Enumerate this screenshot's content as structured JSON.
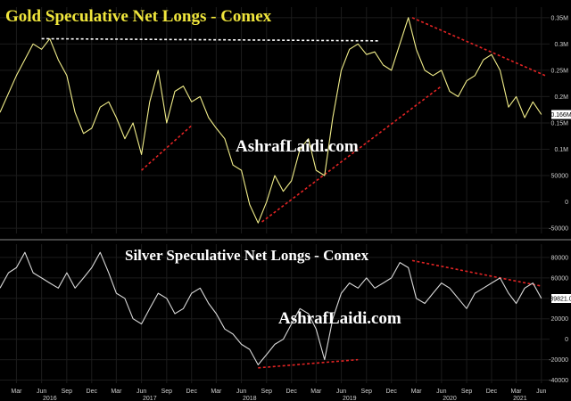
{
  "chart_data": [
    {
      "type": "line",
      "title": "Gold Speculative Net Longs - Comex",
      "watermark": "AshrafLaidi.com",
      "line_color": "#f2ee8a",
      "ylim": [
        -60000,
        370000
      ],
      "yticks": [
        {
          "value": 350000,
          "label": "0.35M"
        },
        {
          "value": 300000,
          "label": "0.3M"
        },
        {
          "value": 250000,
          "label": "0.25M"
        },
        {
          "value": 200000,
          "label": "0.2M"
        },
        {
          "value": 150000,
          "label": "0.15M"
        },
        {
          "value": 100000,
          "label": "0.1M"
        },
        {
          "value": 50000,
          "label": "50000"
        },
        {
          "value": 0,
          "label": "0"
        },
        {
          "value": -50000,
          "label": "-50000"
        }
      ],
      "last_value_label": "0.166M",
      "last_value": 166000,
      "series": [
        {
          "x": [
            "2016-01-01",
            "2016-03-01",
            "2016-05-01",
            "2016-06-01",
            "2016-07-01",
            "2016-08-01",
            "2016-09-01",
            "2016-10-01",
            "2016-11-01",
            "2016-12-01",
            "2017-01-01",
            "2017-02-01",
            "2017-03-01",
            "2017-04-01",
            "2017-05-01",
            "2017-06-01",
            "2017-07-01",
            "2017-08-01",
            "2017-09-01",
            "2017-10-01",
            "2017-11-01",
            "2017-12-01",
            "2018-01-01",
            "2018-02-01",
            "2018-03-01",
            "2018-04-01",
            "2018-05-01",
            "2018-06-01",
            "2018-07-01",
            "2018-08-01",
            "2018-09-01",
            "2018-10-01",
            "2018-11-01",
            "2018-12-01",
            "2019-01-01",
            "2019-02-01",
            "2019-03-01",
            "2019-04-01",
            "2019-05-01",
            "2019-06-01",
            "2019-07-01",
            "2019-08-01",
            "2019-09-01",
            "2019-10-01",
            "2019-11-01",
            "2019-12-01",
            "2020-01-01",
            "2020-02-01",
            "2020-03-01",
            "2020-04-01",
            "2020-05-01",
            "2020-06-01",
            "2020-07-01",
            "2020-08-01",
            "2020-09-01",
            "2020-10-01",
            "2020-11-01",
            "2020-12-01",
            "2021-01-01",
            "2021-02-01",
            "2021-03-01",
            "2021-04-01",
            "2021-05-01",
            "2021-06-01"
          ],
          "y": [
            170000,
            240000,
            300000,
            290000,
            310000,
            270000,
            240000,
            170000,
            130000,
            140000,
            180000,
            190000,
            160000,
            120000,
            150000,
            90000,
            190000,
            250000,
            150000,
            210000,
            220000,
            190000,
            200000,
            160000,
            140000,
            120000,
            70000,
            60000,
            -5000,
            -40000,
            0,
            50000,
            20000,
            40000,
            100000,
            120000,
            60000,
            50000,
            160000,
            250000,
            290000,
            300000,
            280000,
            285000,
            260000,
            250000,
            300000,
            350000,
            290000,
            250000,
            240000,
            250000,
            210000,
            200000,
            230000,
            240000,
            270000,
            280000,
            250000,
            180000,
            200000,
            160000,
            190000,
            166000
          ]
        }
      ],
      "trendlines": [
        {
          "color": "#ffffff",
          "points": [
            [
              "2016-06-01",
              310000
            ],
            [
              "2019-10-15",
              306000
            ]
          ]
        },
        {
          "color": "#e32424",
          "points": [
            [
              "2017-06-01",
              60000
            ],
            [
              "2017-12-01",
              145000
            ]
          ]
        },
        {
          "color": "#e32424",
          "points": [
            [
              "2018-08-15",
              -38000
            ],
            [
              "2020-06-01",
              220000
            ]
          ]
        },
        {
          "color": "#e32424",
          "points": [
            [
              "2020-02-15",
              350000
            ],
            [
              "2021-06-15",
              240000
            ]
          ]
        }
      ]
    },
    {
      "type": "line",
      "title": "Silver Speculative Net Longs - Comex",
      "watermark": "AshrafLaidi.com",
      "line_color": "#d8d8d8",
      "ylim": [
        -43000,
        93000
      ],
      "yticks": [
        {
          "value": 80000,
          "label": "80000"
        },
        {
          "value": 60000,
          "label": "60000"
        },
        {
          "value": 40000,
          "label": "40000"
        },
        {
          "value": 20000,
          "label": "20000"
        },
        {
          "value": 0,
          "label": "0"
        },
        {
          "value": -20000,
          "label": "-20000"
        },
        {
          "value": -40000,
          "label": "-40000"
        }
      ],
      "last_value_label": "39821.0",
      "last_value": 39821,
      "series": [
        {
          "x": [
            "2016-01-01",
            "2016-02-01",
            "2016-03-01",
            "2016-04-01",
            "2016-05-01",
            "2016-06-01",
            "2016-07-01",
            "2016-08-01",
            "2016-09-01",
            "2016-10-01",
            "2016-11-01",
            "2016-12-01",
            "2017-01-01",
            "2017-02-01",
            "2017-03-01",
            "2017-04-01",
            "2017-05-01",
            "2017-06-01",
            "2017-07-01",
            "2017-08-01",
            "2017-09-01",
            "2017-10-01",
            "2017-11-01",
            "2017-12-01",
            "2018-01-01",
            "2018-02-01",
            "2018-03-01",
            "2018-04-01",
            "2018-05-01",
            "2018-06-01",
            "2018-07-01",
            "2018-08-01",
            "2018-09-01",
            "2018-10-01",
            "2018-11-01",
            "2018-12-01",
            "2019-01-01",
            "2019-02-01",
            "2019-03-01",
            "2019-04-01",
            "2019-05-01",
            "2019-06-01",
            "2019-07-01",
            "2019-08-01",
            "2019-09-01",
            "2019-10-01",
            "2019-11-01",
            "2019-12-01",
            "2020-01-01",
            "2020-02-01",
            "2020-03-01",
            "2020-04-01",
            "2020-05-01",
            "2020-06-01",
            "2020-07-01",
            "2020-08-01",
            "2020-09-01",
            "2020-10-01",
            "2020-11-01",
            "2020-12-01",
            "2021-01-01",
            "2021-02-01",
            "2021-03-01",
            "2021-04-01",
            "2021-05-01",
            "2021-06-01"
          ],
          "y": [
            50000,
            65000,
            70000,
            85000,
            65000,
            60000,
            55000,
            50000,
            65000,
            50000,
            60000,
            70000,
            85000,
            65000,
            45000,
            40000,
            20000,
            15000,
            30000,
            45000,
            40000,
            25000,
            30000,
            45000,
            50000,
            35000,
            25000,
            10000,
            5000,
            -5000,
            -10000,
            -25000,
            -15000,
            -5000,
            0,
            15000,
            30000,
            25000,
            10000,
            -20000,
            20000,
            45000,
            55000,
            50000,
            60000,
            50000,
            55000,
            60000,
            75000,
            70000,
            40000,
            35000,
            45000,
            55000,
            50000,
            40000,
            30000,
            45000,
            50000,
            55000,
            60000,
            45000,
            35000,
            50000,
            55000,
            40000
          ]
        }
      ],
      "trendlines": [
        {
          "color": "#e32424",
          "points": [
            [
              "2018-08-01",
              -28000
            ],
            [
              "2019-08-01",
              -20000
            ]
          ]
        },
        {
          "color": "#e32424",
          "points": [
            [
              "2020-02-15",
              77000
            ],
            [
              "2021-06-01",
              52000
            ]
          ]
        }
      ]
    }
  ],
  "x_axis": {
    "tick_labels": [
      {
        "date": "2016-03-01",
        "label": "Mar"
      },
      {
        "date": "2016-06-01",
        "label": "Jun"
      },
      {
        "date": "2016-09-01",
        "label": "Sep"
      },
      {
        "date": "2016-12-01",
        "label": "Dec"
      },
      {
        "date": "2017-03-01",
        "label": "Mar"
      },
      {
        "date": "2017-06-01",
        "label": "Jun"
      },
      {
        "date": "2017-09-01",
        "label": "Sep"
      },
      {
        "date": "2017-12-01",
        "label": "Dec"
      },
      {
        "date": "2018-03-01",
        "label": "Mar"
      },
      {
        "date": "2018-06-01",
        "label": "Jun"
      },
      {
        "date": "2018-09-01",
        "label": "Sep"
      },
      {
        "date": "2018-12-01",
        "label": "Dec"
      },
      {
        "date": "2019-03-01",
        "label": "Mar"
      },
      {
        "date": "2019-06-01",
        "label": "Jun"
      },
      {
        "date": "2019-09-01",
        "label": "Sep"
      },
      {
        "date": "2019-12-01",
        "label": "Dec"
      },
      {
        "date": "2020-03-01",
        "label": "Mar"
      },
      {
        "date": "2020-06-01",
        "label": "Jun"
      },
      {
        "date": "2020-09-01",
        "label": "Sep"
      },
      {
        "date": "2020-12-01",
        "label": "Dec"
      },
      {
        "date": "2021-03-01",
        "label": "Mar"
      },
      {
        "date": "2021-06-01",
        "label": "Jun"
      }
    ],
    "year_labels": [
      {
        "date": "2016-07-01",
        "label": "2016"
      },
      {
        "date": "2017-07-01",
        "label": "2017"
      },
      {
        "date": "2018-07-01",
        "label": "2018"
      },
      {
        "date": "2019-07-01",
        "label": "2019"
      },
      {
        "date": "2020-07-01",
        "label": "2020"
      },
      {
        "date": "2021-03-15",
        "label": "2021"
      }
    ],
    "range": [
      "2016-01-01",
      "2021-07-01"
    ]
  },
  "colors": {
    "background": "#000000",
    "title": "#f0e63c",
    "axis_text": "#d0d0d0",
    "label_box": "#ffffff",
    "label_text": "#000000",
    "watermark": "#ffffff",
    "grid": "#1c1c1c",
    "separator": "#8a8a8a"
  }
}
